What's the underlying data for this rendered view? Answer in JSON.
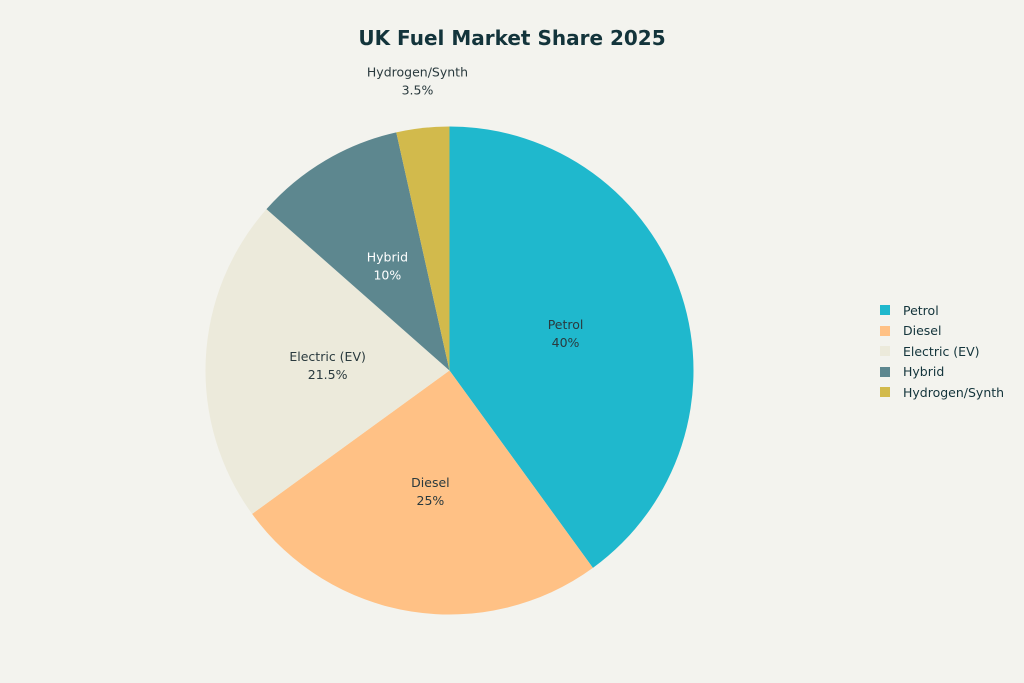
{
  "chart_data": {
    "type": "pie",
    "title": "UK Fuel Market Share 2025",
    "slices": [
      {
        "name": "Petrol",
        "value": 40,
        "label": "40%",
        "color": "#1fb8cd"
      },
      {
        "name": "Diesel",
        "value": 25,
        "label": "25%",
        "color": "#ffc185"
      },
      {
        "name": "Electric (EV)",
        "value": 21.5,
        "label": "21.5%",
        "color": "#eceadb"
      },
      {
        "name": "Hybrid",
        "value": 10,
        "label": "10%",
        "color": "#5d878f"
      },
      {
        "name": "Hydrogen/Synth",
        "value": 3.5,
        "label": "3.5%",
        "color": "#d2ba4c"
      }
    ],
    "legend": {
      "placement": "right",
      "order": [
        "Petrol",
        "Diesel",
        "Electric (EV)",
        "Hybrid",
        "Hydrogen/Synth"
      ]
    },
    "background_color": "#f3f3ee"
  }
}
